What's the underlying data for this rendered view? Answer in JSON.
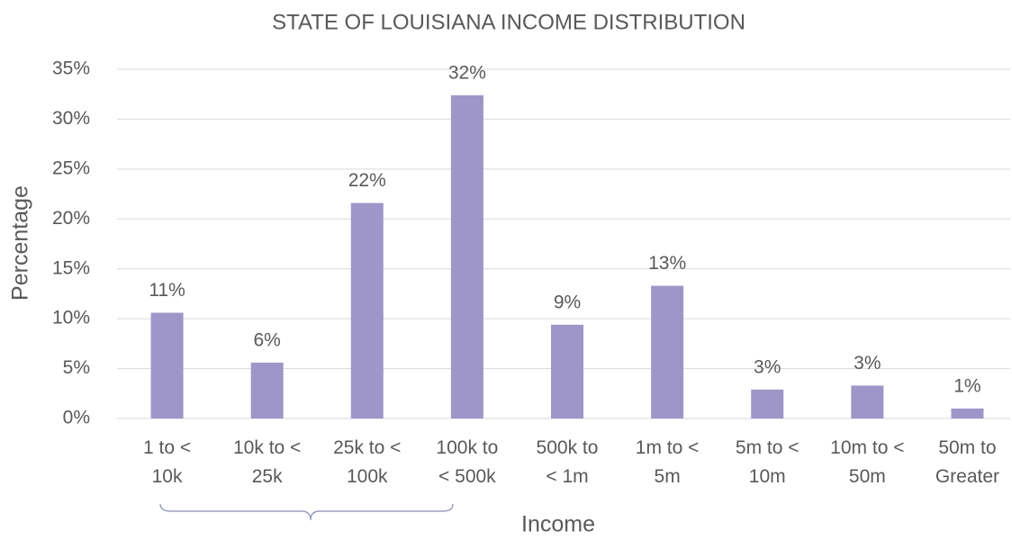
{
  "chart_data": {
    "type": "bar",
    "title": "STATE OF LOUISIANA INCOME DISTRIBUTION",
    "x_label": "Income",
    "y_label": "Percentage",
    "categories": [
      "1 to <\n10k",
      "10k to <\n25k",
      "25k to <\n100k",
      "100k to\n< 500k",
      "500k to\n< 1m",
      "1m to <\n5m",
      "5m to <\n10m",
      "10m to <\n50m",
      "50m to\nGreater"
    ],
    "values": [
      10.6,
      5.6,
      21.6,
      32.4,
      9.4,
      13.3,
      2.9,
      3.3,
      1.0
    ],
    "value_labels": [
      "11%",
      "6%",
      "22%",
      "32%",
      "9%",
      "13%",
      "3%",
      "3%",
      "1%"
    ],
    "color": "#9e95c8",
    "ylim": [
      0,
      35
    ],
    "yticks": [
      {
        "value": 0,
        "label": "0%"
      },
      {
        "value": 5,
        "label": "5%"
      },
      {
        "value": 10,
        "label": "10%"
      },
      {
        "value": 15,
        "label": "15%"
      },
      {
        "value": 20,
        "label": "20%"
      },
      {
        "value": 25,
        "label": "25%"
      },
      {
        "value": 30,
        "label": "30%"
      },
      {
        "value": 35,
        "label": "35%"
      }
    ],
    "grid": true
  }
}
